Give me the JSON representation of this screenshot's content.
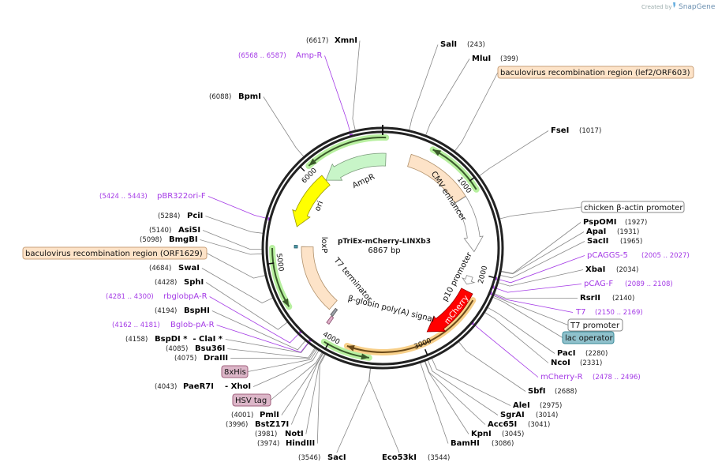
{
  "map": {
    "name": "pTriEx-mCherry-LINXb3",
    "size": "6867 bp",
    "length": 6867
  },
  "logo": {
    "created_by": "Created by",
    "brand": "SnapGene"
  },
  "ticks": [
    "1000",
    "2000",
    "3000",
    "4000",
    "5000",
    "6000"
  ],
  "enzymes": [
    {
      "name": "SalI",
      "pos": "(243)"
    },
    {
      "name": "MluI",
      "pos": "(399)"
    },
    {
      "name": "FseI",
      "pos": "(1017)"
    },
    {
      "name": "PspOMI",
      "pos": "(1927)"
    },
    {
      "name": "ApaI",
      "pos": "(1931)"
    },
    {
      "name": "SacII",
      "pos": "(1965)"
    },
    {
      "name": "XbaI",
      "pos": "(2034)"
    },
    {
      "name": "RsrII",
      "pos": "(2140)"
    },
    {
      "name": "PacI",
      "pos": "(2280)"
    },
    {
      "name": "NcoI",
      "pos": "(2331)"
    },
    {
      "name": "SbfI",
      "pos": "(2688)"
    },
    {
      "name": "AleI",
      "pos": "(2975)"
    },
    {
      "name": "SgrAI",
      "pos": "(3014)"
    },
    {
      "name": "Acc65I",
      "pos": "(3041)"
    },
    {
      "name": "KpnI",
      "pos": "(3045)"
    },
    {
      "name": "BamHI",
      "pos": "(3086)"
    },
    {
      "name": "Eco53kI",
      "pos": "(3544)"
    },
    {
      "name": "SacI",
      "pos": "(3546)"
    },
    {
      "name": "HindIII",
      "pos": "(3974)"
    },
    {
      "name": "NotI",
      "pos": "(3981)"
    },
    {
      "name": "BstZ17I",
      "pos": "(3996)"
    },
    {
      "name": "PmlI",
      "pos": "(4001)"
    },
    {
      "name": "PaeR7I",
      "pos": "(4043)",
      "alias": "- XhoI"
    },
    {
      "name": "DraIII",
      "pos": "(4075)"
    },
    {
      "name": "Bsu36I",
      "pos": "(4085)"
    },
    {
      "name": "BspDI *  - ClaI *",
      "pos": "(4158)"
    },
    {
      "name": "BspHI",
      "pos": "(4194)"
    },
    {
      "name": "SphI",
      "pos": "(4428)"
    },
    {
      "name": "SwaI",
      "pos": "(4684)"
    },
    {
      "name": "BmgBI",
      "pos": "(5098)"
    },
    {
      "name": "AsiSI",
      "pos": "(5140)"
    },
    {
      "name": "PciI",
      "pos": "(5284)"
    },
    {
      "name": "BpmI",
      "pos": "(6088)"
    },
    {
      "name": "XmnI",
      "pos": "(6617)"
    }
  ],
  "primers": [
    {
      "name": "Amp-R",
      "range": "(6568 .. 6587)"
    },
    {
      "name": "pBR322ori-F",
      "range": "(5424 .. 5443)"
    },
    {
      "name": "rbglobpA-R",
      "range": "(4281 .. 4300)"
    },
    {
      "name": "Bglob-pA-R",
      "range": "(4162 .. 4181)"
    },
    {
      "name": "pCAGGS-5",
      "range": "(2005 .. 2027)"
    },
    {
      "name": "pCAG-F",
      "range": "(2089 .. 2108)"
    },
    {
      "name": "T7",
      "range": "(2150 .. 2169)"
    },
    {
      "name": "mCherry-R",
      "range": "(2478 .. 2496)"
    }
  ],
  "feature_boxes": [
    {
      "label": "baculovirus recombination region (lef2/ORF603)",
      "fill": "#fde3c8",
      "border": "#c9a27b",
      "bp": 700
    },
    {
      "label": "chicken β-actin promoter",
      "fill": "#ffffff",
      "border": "#888888",
      "bp": 1450
    },
    {
      "label": "T7 promoter",
      "fill": "#ffffff",
      "border": "#888888",
      "bp": 2160
    },
    {
      "label": "lac operator",
      "fill": "#8fc1cc",
      "border": "#3a8a99",
      "bp": 2175
    },
    {
      "label": "8xHis",
      "fill": "#dcb6c8",
      "border": "#a0607d",
      "bp": 4060
    },
    {
      "label": "HSV tag",
      "fill": "#dcb6c8",
      "border": "#a0607d",
      "bp": 4010
    },
    {
      "label": "baculovirus recombination region (ORF1629)",
      "fill": "#fde3c8",
      "border": "#c9a27b",
      "bp": 4900
    }
  ],
  "features": [
    {
      "label": "AmpR",
      "start": 6105,
      "end": 6905,
      "dir": -1,
      "fill": "#c8f5c8",
      "stroke": "#7a9a7a"
    },
    {
      "label": "ori",
      "start": 5417,
      "end": 6104,
      "dir": -1,
      "fill": "#ffff00",
      "stroke": "#999900"
    },
    {
      "label": "CMV enhancer",
      "start": 324,
      "end": 1106,
      "dir": 0,
      "fill": "#fde3c8",
      "stroke": "#b0906a"
    },
    {
      "label": "chicken β-actin promoter",
      "start": 1110,
      "end": 1760,
      "dir": 1,
      "fill": "#ffffff",
      "stroke": "#888888"
    },
    {
      "label": "p10 promoter",
      "start": 2060,
      "end": 2160,
      "dir": 1,
      "fill": "#ffffff",
      "stroke": "#888888"
    },
    {
      "label": "mCherry",
      "start": 2232,
      "end": 2900,
      "dir": 1,
      "fill": "#ff0000",
      "stroke": "#990000"
    },
    {
      "label": "baculovirus recombination region (ORF1629)",
      "start": 4216,
      "end": 5169,
      "dir": 0,
      "fill": "#fde3c8",
      "stroke": "#b0906a"
    },
    {
      "label": "loxP",
      "start": 5150,
      "end": 5185,
      "dir": 0,
      "fill": "#4a9aaa",
      "stroke": "#2a5a66"
    },
    {
      "label": "T7 terminator",
      "start": 4125,
      "end": 4160,
      "dir": 0,
      "fill": "#9aa0a8",
      "stroke": "#555555"
    },
    {
      "label": "β-globin poly(A) signal",
      "start": 4105,
      "end": 4140,
      "dir": 0,
      "fill": "#e0b0c8",
      "stroke": "#8a5070"
    }
  ],
  "orfs": [
    {
      "start": 6066,
      "end": 6900,
      "dir": -1,
      "color": "#b8f0a0",
      "line": "#3a5a2a"
    },
    {
      "start": 515,
      "end": 1106,
      "dir": -1,
      "color": "#b8f0a0",
      "line": "#3a5a2a"
    },
    {
      "start": 4540,
      "end": 5150,
      "dir": -1,
      "color": "#b8f0a0",
      "line": "#3a5a2a"
    },
    {
      "start": 3568,
      "end": 4044,
      "dir": -1,
      "color": "#b8f0a0",
      "line": "#3a5a2a"
    },
    {
      "start": 2290,
      "end": 3815,
      "dir": 1,
      "color": "#f8d08a",
      "line": "#6a4a1a"
    }
  ]
}
